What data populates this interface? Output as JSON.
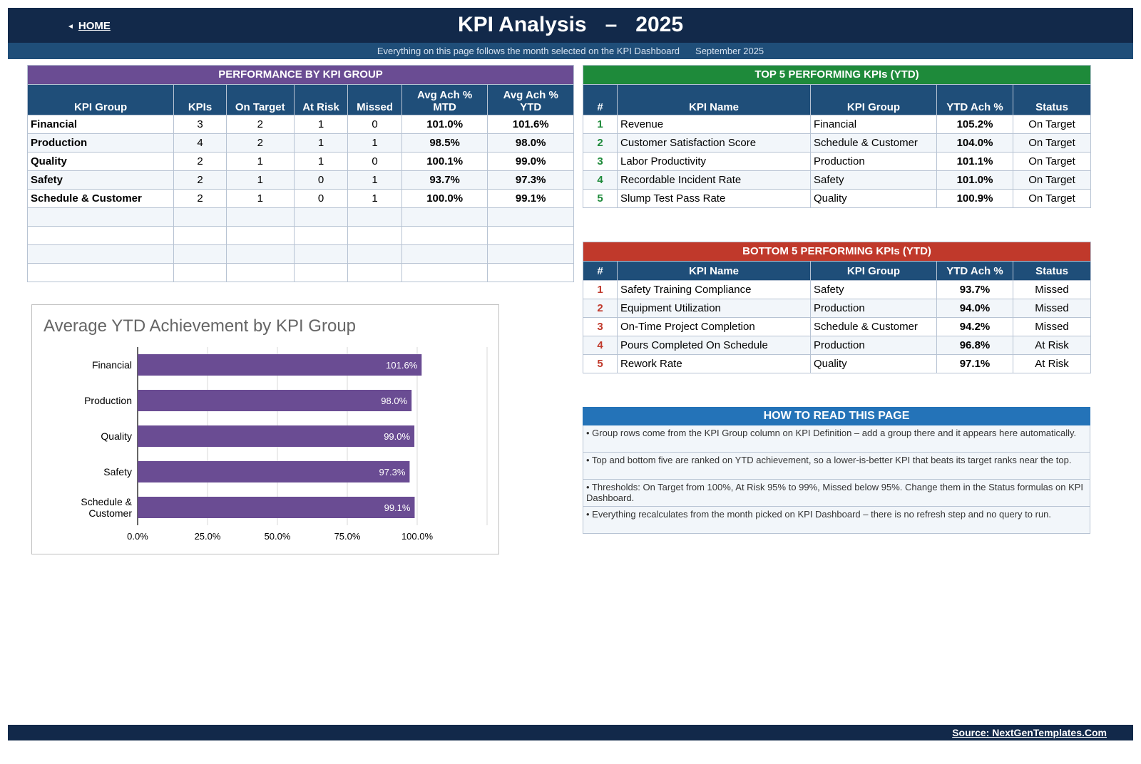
{
  "header": {
    "home_label": "HOME",
    "title_main": "KPI Analysis",
    "title_sep": "–",
    "title_year": "2025",
    "subtitle": "Everything on this page follows the month selected on the KPI Dashboard",
    "month": "September 2025"
  },
  "performance": {
    "banner": "PERFORMANCE BY KPI GROUP",
    "banner_color": "#6a4c93",
    "columns": [
      "KPI Group",
      "KPIs",
      "On Target",
      "At Risk",
      "Missed",
      "Avg Ach % MTD",
      "Avg Ach % YTD"
    ],
    "column_lines": [
      [
        "KPI Group"
      ],
      [
        "KPIs"
      ],
      [
        "On Target"
      ],
      [
        "At Risk"
      ],
      [
        "Missed"
      ],
      [
        "Avg Ach %",
        "MTD"
      ],
      [
        "Avg Ach %",
        "YTD"
      ]
    ],
    "rows": [
      [
        "Financial",
        "3",
        "2",
        "1",
        "0",
        "101.0%",
        "101.6%"
      ],
      [
        "Production",
        "4",
        "2",
        "1",
        "1",
        "98.5%",
        "98.0%"
      ],
      [
        "Quality",
        "2",
        "1",
        "1",
        "0",
        "100.1%",
        "99.0%"
      ],
      [
        "Safety",
        "2",
        "1",
        "0",
        "1",
        "93.7%",
        "97.3%"
      ],
      [
        "Schedule & Customer",
        "2",
        "1",
        "0",
        "1",
        "100.0%",
        "99.1%"
      ],
      [
        "",
        "",
        "",
        "",
        "",
        "",
        ""
      ],
      [
        "",
        "",
        "",
        "",
        "",
        "",
        ""
      ],
      [
        "",
        "",
        "",
        "",
        "",
        "",
        ""
      ],
      [
        "",
        "",
        "",
        "",
        "",
        "",
        ""
      ]
    ]
  },
  "top5": {
    "banner": "TOP 5 PERFORMING KPIs  (YTD)",
    "banner_color": "#1e8a3a",
    "columns": [
      "#",
      "KPI Name",
      "KPI Group",
      "YTD Ach %",
      "Status"
    ],
    "rows": [
      [
        "1",
        "Revenue",
        "Financial",
        "105.2%",
        "On Target"
      ],
      [
        "2",
        "Customer Satisfaction Score",
        "Schedule & Customer",
        "104.0%",
        "On Target"
      ],
      [
        "3",
        "Labor Productivity",
        "Production",
        "101.1%",
        "On Target"
      ],
      [
        "4",
        "Recordable Incident Rate",
        "Safety",
        "101.0%",
        "On Target"
      ],
      [
        "5",
        "Slump Test Pass Rate",
        "Quality",
        "100.9%",
        "On Target"
      ]
    ]
  },
  "bottom5": {
    "banner": "BOTTOM 5 PERFORMING KPIs  (YTD)",
    "banner_color": "#c0392b",
    "columns": [
      "#",
      "KPI Name",
      "KPI Group",
      "YTD Ach %",
      "Status"
    ],
    "rows": [
      [
        "1",
        "Safety Training Compliance",
        "Safety",
        "93.7%",
        "Missed"
      ],
      [
        "2",
        "Equipment Utilization",
        "Production",
        "94.0%",
        "Missed"
      ],
      [
        "3",
        "On-Time Project Completion",
        "Schedule & Customer",
        "94.2%",
        "Missed"
      ],
      [
        "4",
        "Pours Completed On Schedule",
        "Production",
        "96.8%",
        "At Risk"
      ],
      [
        "5",
        "Rework Rate",
        "Quality",
        "97.1%",
        "At Risk"
      ]
    ]
  },
  "how_to_read": {
    "banner": "HOW TO READ THIS PAGE",
    "notes": [
      "•  Group rows come from the KPI Group column on KPI Definition – add a group there and it appears here automatically.",
      "•  Top and bottom five are ranked on YTD achievement, so a lower-is-better KPI that beats its target ranks near the top.",
      "•  Thresholds: On Target from 100%, At Risk 95% to 99%, Missed below 95%. Change them in the Status formulas on KPI Dashboard.",
      "•  Everything recalculates from the month picked on KPI Dashboard – there is no refresh step and no query to run."
    ]
  },
  "chart_data": {
    "type": "bar",
    "orientation": "horizontal",
    "title": "Average YTD Achievement by KPI Group",
    "categories": [
      "Financial",
      "Production",
      "Quality",
      "Safety",
      "Schedule & Customer"
    ],
    "category_lines": [
      [
        "Financial"
      ],
      [
        "Production"
      ],
      [
        "Quality"
      ],
      [
        "Safety"
      ],
      [
        "Schedule &",
        "Customer"
      ]
    ],
    "values": [
      101.6,
      98.0,
      99.0,
      97.3,
      99.1
    ],
    "value_labels": [
      "101.6%",
      "98.0%",
      "99.0%",
      "97.3%",
      "99.1%"
    ],
    "xticks": [
      "0.0%",
      "25.0%",
      "50.0%",
      "75.0%",
      "100.0%"
    ],
    "xlim": [
      0,
      125
    ],
    "grid": true,
    "bar_color": "#6a4c93"
  },
  "footer": {
    "source": "Source: NextGenTemplates.Com"
  }
}
